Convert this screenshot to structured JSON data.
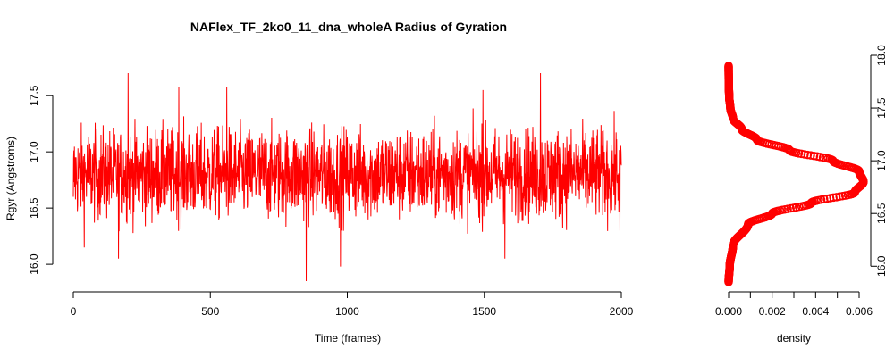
{
  "chart_data": [
    {
      "type": "line",
      "title": "NAFlex_TF_2ko0_11_dna_wholeA Radius of Gyration",
      "xlabel": "Time (frames)",
      "ylabel": "Rgyr (Angstroms)",
      "xlim": [
        0,
        2000
      ],
      "ylim": [
        15.85,
        17.7
      ],
      "x_ticks": [
        "0",
        "500",
        "1000",
        "1500",
        "2000"
      ],
      "y_ticks": [
        "16.0",
        "16.5",
        "17.0",
        "17.5"
      ],
      "grid": false,
      "color": "#ff0000",
      "series": [
        {
          "n_frames": 2000,
          "mean": 16.8,
          "sd": 0.2,
          "x": [
            0,
            40,
            165,
            200,
            385,
            560,
            850,
            975,
            1495,
            1575,
            1705,
            1995
          ],
          "y": [
            16.6,
            16.15,
            16.05,
            17.7,
            17.58,
            17.58,
            15.85,
            15.98,
            17.55,
            16.05,
            17.7,
            16.3
          ]
        }
      ]
    },
    {
      "type": "line",
      "xlabel": "density",
      "xlim": [
        0,
        0.006
      ],
      "ylim": [
        15.85,
        18.0
      ],
      "x_ticks": [
        "0.000",
        "0.002",
        "0.004",
        "0.006"
      ],
      "y_ticks": [
        "16.0",
        "16.5",
        "17.0",
        "17.5",
        "18.0"
      ],
      "color": "#ff0000",
      "series": [
        {
          "y": [
            15.85,
            16.0,
            16.2,
            16.4,
            16.5,
            16.6,
            16.7,
            16.8,
            16.9,
            17.0,
            17.1,
            17.2,
            17.3,
            17.4,
            17.5,
            17.6,
            17.7,
            17.9
          ],
          "x": [
            0.0,
            5e-05,
            0.0002,
            0.0009,
            0.002,
            0.0038,
            0.0058,
            0.0062,
            0.006,
            0.0048,
            0.0028,
            0.0013,
            0.0006,
            0.0002,
            8e-05,
            3e-05,
            1e-05,
            0.0
          ]
        }
      ]
    }
  ]
}
